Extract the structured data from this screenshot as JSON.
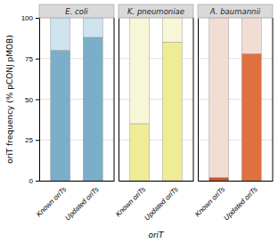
{
  "chart_data": [
    {
      "type": "bar",
      "title": "E. coli",
      "stacked": true,
      "grid": true,
      "categories": [
        "Known oriTs",
        "Updated oriTs"
      ],
      "series": [
        {
          "colors": [
            "#7bafc9",
            "#7bafc9"
          ],
          "values": [
            80,
            88
          ]
        },
        {
          "colors": [
            "#cfe3ef",
            "#cfe3ef"
          ],
          "values": [
            20,
            12
          ]
        }
      ],
      "y_label": "oriT frequency (% pCONJ pMOB)",
      "ylim": [
        0,
        100
      ],
      "yticks": [
        0,
        25,
        50,
        75,
        100
      ]
    },
    {
      "type": "bar",
      "title": "K. pneumoniae",
      "stacked": true,
      "grid": true,
      "tick_labels": "x",
      "categories": [
        "Known oriTs",
        "Updated oriTs"
      ],
      "series": [
        {
          "colors": [
            "#eeed96",
            "#eeed96"
          ],
          "values": [
            35,
            85
          ]
        },
        {
          "colors": [
            "#f7f7d8",
            "#f7f7d8"
          ],
          "values": [
            65,
            15
          ]
        }
      ],
      "x_label": "oriT",
      "ylim": [
        0,
        100
      ],
      "yticks": [
        0,
        25,
        50,
        75,
        100
      ]
    },
    {
      "type": "bar",
      "title": "A. baumannii",
      "stacked": true,
      "grid": true,
      "tick_labels": "x",
      "categories": [
        "Known oriTs",
        "Updated oriTs"
      ],
      "series": [
        {
          "colors": [
            "#c8522a",
            "#e07040"
          ],
          "values": [
            2,
            78
          ]
        },
        {
          "colors": [
            "#f2ddd4",
            "#f2ddd4"
          ],
          "values": [
            98,
            22
          ]
        }
      ],
      "ylim": [
        0,
        100
      ],
      "yticks": [
        0,
        25,
        50,
        75,
        100
      ]
    }
  ]
}
